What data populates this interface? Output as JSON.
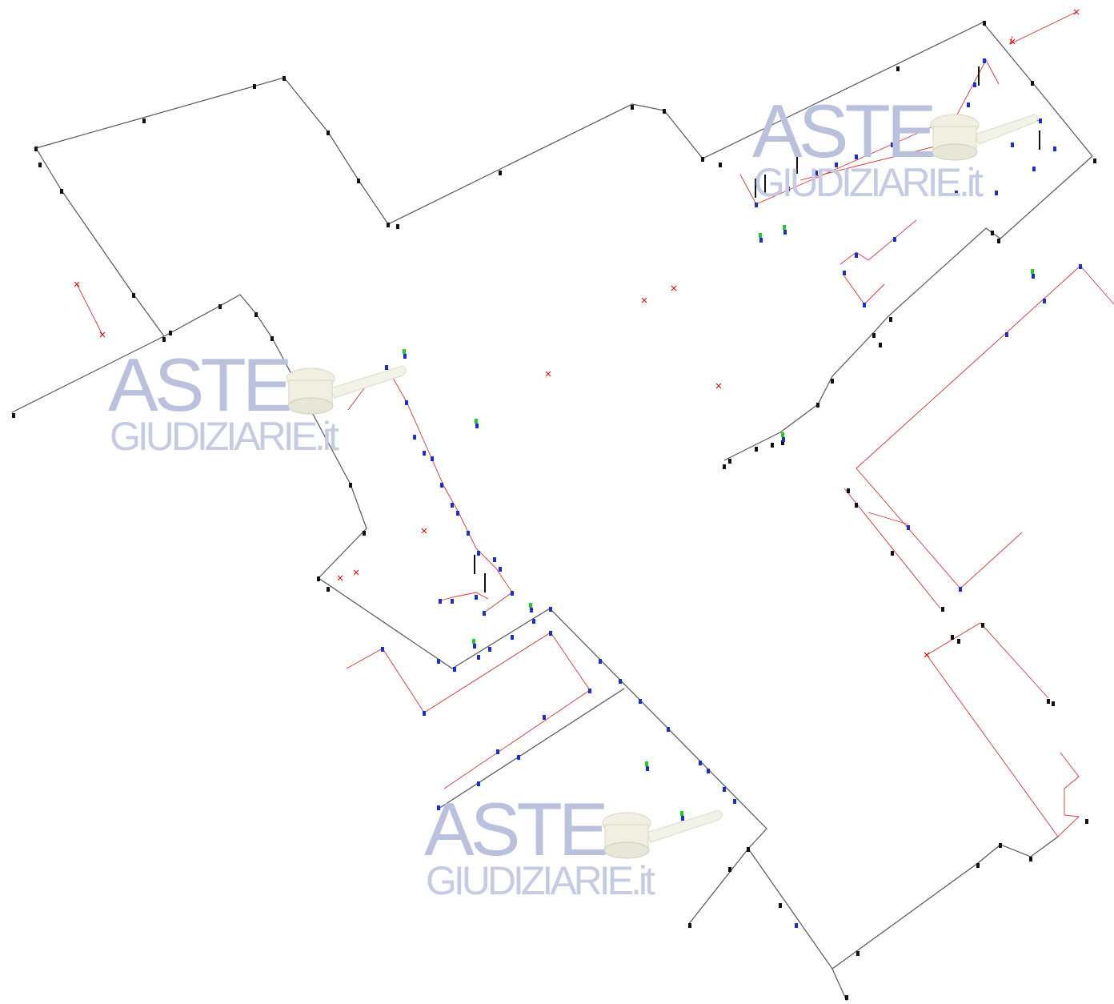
{
  "watermark": {
    "line1": "ASTE",
    "line2": "GIUDIZIARIE.it",
    "gavel_icon": "gavel-icon",
    "color": "#b9c1dc"
  },
  "map": {
    "colors": {
      "boundary": "#555555",
      "survey": "#e03030",
      "marker_black": "#111111",
      "marker_blue": "#1a2fd0",
      "marker_green": "#22cc22",
      "marker_red": "#dd0000"
    },
    "icons": [
      "survey-point-icon",
      "vertex-marker-icon",
      "green-marker-icon",
      "x-cross-icon"
    ]
  }
}
